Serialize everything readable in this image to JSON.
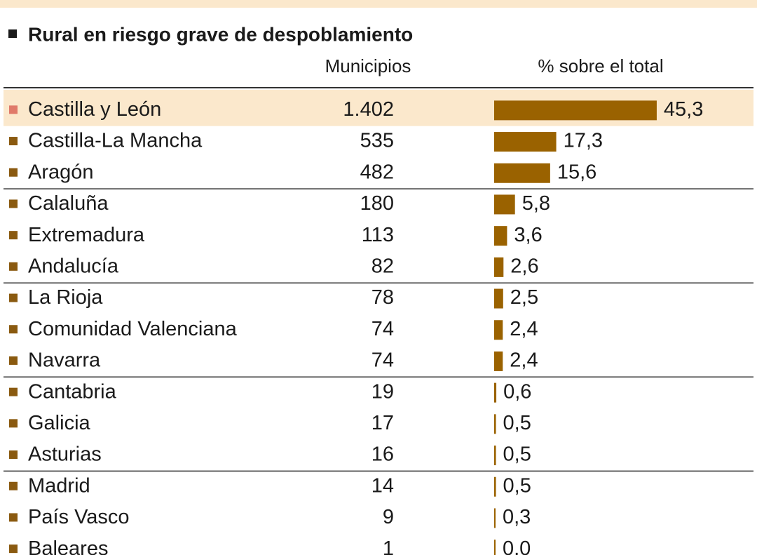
{
  "chart_data": {
    "type": "bar",
    "title": "Rural en riesgo grave de despoblamiento",
    "column_headers": [
      "Municipios",
      "% sobre el total"
    ],
    "categories": [
      "Castilla y León",
      "Castilla-La Mancha",
      "Aragón",
      "Calaluña",
      "Extremadura",
      "Andalucía",
      "La Rioja",
      "Comunidad Valenciana",
      "Navarra",
      "Cantabria",
      "Galicia",
      "Asturias",
      "Madrid",
      "País Vasco",
      "Baleares"
    ],
    "municipios": [
      "1.402",
      "535",
      "482",
      "180",
      "113",
      "82",
      "78",
      "74",
      "74",
      "19",
      "17",
      "16",
      "14",
      "9",
      "1"
    ],
    "values": [
      45.3,
      17.3,
      15.6,
      5.8,
      3.6,
      2.6,
      2.5,
      2.4,
      2.4,
      0.6,
      0.5,
      0.5,
      0.5,
      0.3,
      0.0
    ],
    "value_labels": [
      "45,3",
      "17,3",
      "15,6",
      "5,8",
      "3,6",
      "2,6",
      "2,5",
      "2,4",
      "2,4",
      "0,6",
      "0,5",
      "0,5",
      "0,5",
      "0,3",
      "0,0"
    ],
    "color": "#9a6200",
    "bullet_color": "#8a5a10",
    "highlight": 0,
    "highlight_color": "#fbe8cc",
    "highlight_bullet_color": "#e07a6a"
  }
}
